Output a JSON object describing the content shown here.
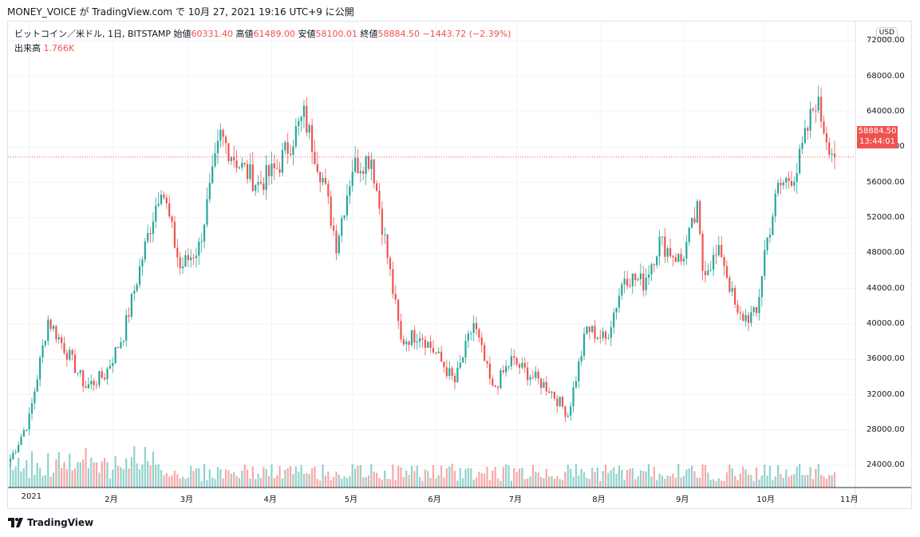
{
  "header": {
    "title": "MONEY_VOICE が TradingView.com で 10月 27, 2021 19:16 UTC+9 に公開"
  },
  "legend": {
    "symbol": "ビットコイン／米ドル, 1日, BITSTAMP",
    "open_label": "始値",
    "open": "60331.40",
    "high_label": "高値",
    "high": "61489.00",
    "low_label": "安値",
    "low": "58100.01",
    "close_label": "終値",
    "close": "58884.50",
    "change": "−1443.72 (−2.39%)",
    "volume_label": "出来高",
    "volume": "1.766K"
  },
  "price_scale": {
    "currency": "USD",
    "last_price": "58884.50",
    "countdown": "13:44:01"
  },
  "footer": {
    "brand": "TradingView"
  },
  "colors": {
    "up": "#26a69a",
    "down": "#ef5350",
    "grid": "#f0f3fa"
  },
  "chart_data": {
    "type": "candlestick",
    "y_ticks": [
      "72000.00",
      "68000.00",
      "64000.00",
      "60000.00",
      "56000.00",
      "52000.00",
      "48000.00",
      "44000.00",
      "40000.00",
      "36000.00",
      "32000.00",
      "28000.00",
      "24000.00"
    ],
    "ylim": [
      21500,
      74200
    ],
    "x_ticks": [
      "2021",
      "2月",
      "3月",
      "4月",
      "5月",
      "6月",
      "7月",
      "8月",
      "9月",
      "10月",
      "11月"
    ],
    "date_range": [
      "2020-12-25",
      "2021-10-27"
    ],
    "last_close": 58884.5,
    "close_series": [
      {
        "x": "2020-12-25",
        "y": 24700
      },
      {
        "x": "2021-01-01",
        "y": 29300
      },
      {
        "x": "2021-01-08",
        "y": 40500
      },
      {
        "x": "2021-01-15",
        "y": 36800
      },
      {
        "x": "2021-01-22",
        "y": 32900
      },
      {
        "x": "2021-01-29",
        "y": 34200
      },
      {
        "x": "2021-02-05",
        "y": 38900
      },
      {
        "x": "2021-02-12",
        "y": 47500
      },
      {
        "x": "2021-02-19",
        "y": 55900
      },
      {
        "x": "2021-02-26",
        "y": 46300
      },
      {
        "x": "2021-03-05",
        "y": 48700
      },
      {
        "x": "2021-03-13",
        "y": 61200
      },
      {
        "x": "2021-03-20",
        "y": 58000
      },
      {
        "x": "2021-03-27",
        "y": 55800
      },
      {
        "x": "2021-04-03",
        "y": 57600
      },
      {
        "x": "2021-04-13",
        "y": 63500
      },
      {
        "x": "2021-04-20",
        "y": 56400
      },
      {
        "x": "2021-04-25",
        "y": 49100
      },
      {
        "x": "2021-05-01",
        "y": 57800
      },
      {
        "x": "2021-05-08",
        "y": 58900
      },
      {
        "x": "2021-05-13",
        "y": 49500
      },
      {
        "x": "2021-05-19",
        "y": 38000
      },
      {
        "x": "2021-05-26",
        "y": 39000
      },
      {
        "x": "2021-06-01",
        "y": 36600
      },
      {
        "x": "2021-06-08",
        "y": 33400
      },
      {
        "x": "2021-06-15",
        "y": 40100
      },
      {
        "x": "2021-06-22",
        "y": 32500
      },
      {
        "x": "2021-06-29",
        "y": 35900
      },
      {
        "x": "2021-07-06",
        "y": 34200
      },
      {
        "x": "2021-07-13",
        "y": 32700
      },
      {
        "x": "2021-07-20",
        "y": 29800
      },
      {
        "x": "2021-07-27",
        "y": 39500
      },
      {
        "x": "2021-08-03",
        "y": 38200
      },
      {
        "x": "2021-08-10",
        "y": 45500
      },
      {
        "x": "2021-08-17",
        "y": 44700
      },
      {
        "x": "2021-08-23",
        "y": 49300
      },
      {
        "x": "2021-08-31",
        "y": 47100
      },
      {
        "x": "2021-09-06",
        "y": 52700
      },
      {
        "x": "2021-09-08",
        "y": 46200
      },
      {
        "x": "2021-09-15",
        "y": 48100
      },
      {
        "x": "2021-09-21",
        "y": 40700
      },
      {
        "x": "2021-09-28",
        "y": 41000
      },
      {
        "x": "2021-10-01",
        "y": 48200
      },
      {
        "x": "2021-10-06",
        "y": 55300
      },
      {
        "x": "2021-10-13",
        "y": 57400
      },
      {
        "x": "2021-10-20",
        "y": 65500
      },
      {
        "x": "2021-10-24",
        "y": 61300
      },
      {
        "x": "2021-10-27",
        "y": 58884.5
      }
    ]
  }
}
